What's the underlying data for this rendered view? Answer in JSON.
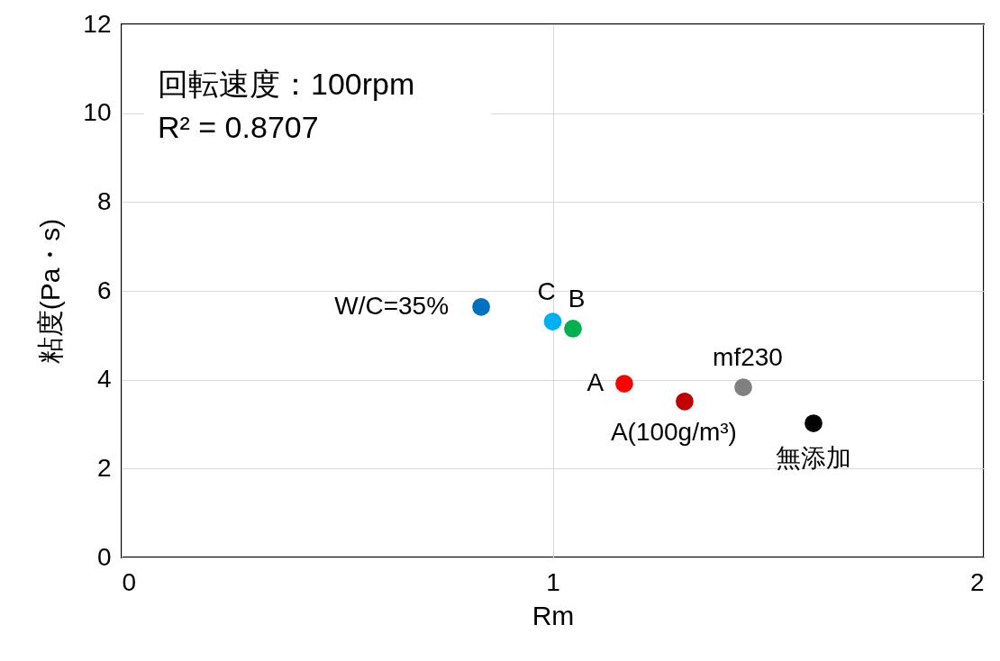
{
  "chart_data": {
    "type": "scatter",
    "xlabel": "Rm",
    "ylabel": "粘度(Pa・s)",
    "xlim": [
      0,
      2
    ],
    "xticks": [
      0,
      1,
      2
    ],
    "ylim": [
      0,
      12
    ],
    "yticks": [
      0,
      2,
      4,
      6,
      8,
      10,
      12
    ],
    "grid": true,
    "marker": "circle",
    "annotations": [
      "回転速度：100rpm",
      "R² = 0.8707"
    ],
    "series": [
      {
        "name": "W/C=35%",
        "color": "#0070c0",
        "x": [
          0.834
        ],
        "values": [
          5.64
        ]
      },
      {
        "name": "C",
        "color": "#00b0f0",
        "x": [
          1.0
        ],
        "values": [
          5.31
        ]
      },
      {
        "name": "B",
        "color": "#00b050",
        "x": [
          1.047
        ],
        "values": [
          5.15
        ]
      },
      {
        "name": "A",
        "color": "#ff0000",
        "x": [
          1.166
        ],
        "values": [
          3.91
        ]
      },
      {
        "name": "A(100g/m³)",
        "color": "#c00000",
        "x": [
          1.306
        ],
        "values": [
          3.51
        ]
      },
      {
        "name": "mf230",
        "color": "#808080",
        "x": [
          1.442
        ],
        "values": [
          3.83
        ]
      },
      {
        "name": "無添加",
        "color": "#000000",
        "x": [
          1.605
        ],
        "values": [
          3.02
        ]
      }
    ]
  }
}
